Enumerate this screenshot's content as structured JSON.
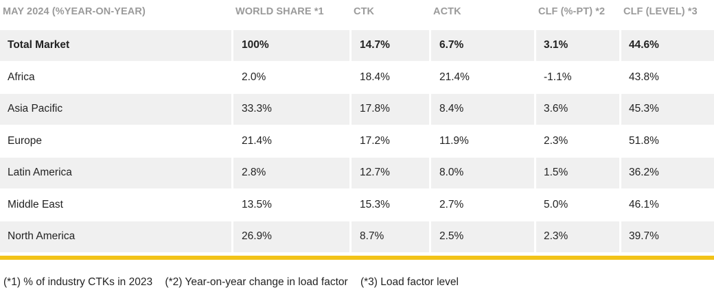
{
  "headers": [
    "MAY 2024 (%YEAR-ON-YEAR)",
    "WORLD SHARE *1",
    "CTK",
    "ACTK",
    "CLF (%-PT) *2",
    "CLF (LEVEL) *3"
  ],
  "rows": [
    {
      "region": "Total Market",
      "world_share": "100%",
      "ctk": "14.7%",
      "actk": "6.7%",
      "clf_pt": "3.1%",
      "clf_level": "44.6%"
    },
    {
      "region": "Africa",
      "world_share": "2.0%",
      "ctk": "18.4%",
      "actk": "21.4%",
      "clf_pt": "-1.1%",
      "clf_level": "43.8%"
    },
    {
      "region": "Asia Pacific",
      "world_share": "33.3%",
      "ctk": "17.8%",
      "actk": "8.4%",
      "clf_pt": "3.6%",
      "clf_level": "45.3%"
    },
    {
      "region": "Europe",
      "world_share": "21.4%",
      "ctk": "17.2%",
      "actk": "11.9%",
      "clf_pt": "2.3%",
      "clf_level": "51.8%"
    },
    {
      "region": "Latin America",
      "world_share": "2.8%",
      "ctk": "12.7%",
      "actk": "8.0%",
      "clf_pt": "1.5%",
      "clf_level": "36.2%"
    },
    {
      "region": "Middle East",
      "world_share": "13.5%",
      "ctk": "15.3%",
      "actk": "2.7%",
      "clf_pt": "5.0%",
      "clf_level": "46.1%"
    },
    {
      "region": "North America",
      "world_share": "26.9%",
      "ctk": "8.7%",
      "actk": "2.5%",
      "clf_pt": "2.3%",
      "clf_level": "39.7%"
    }
  ],
  "footnotes": [
    "(*1) % of industry CTKs in 2023",
    "(*2) Year-on-year change in load factor",
    "(*3) Load factor level"
  ],
  "colors": {
    "accent_bar": "#f2c318",
    "shaded_row": "#f0f0f0",
    "header_text": "#9a9a9a"
  }
}
